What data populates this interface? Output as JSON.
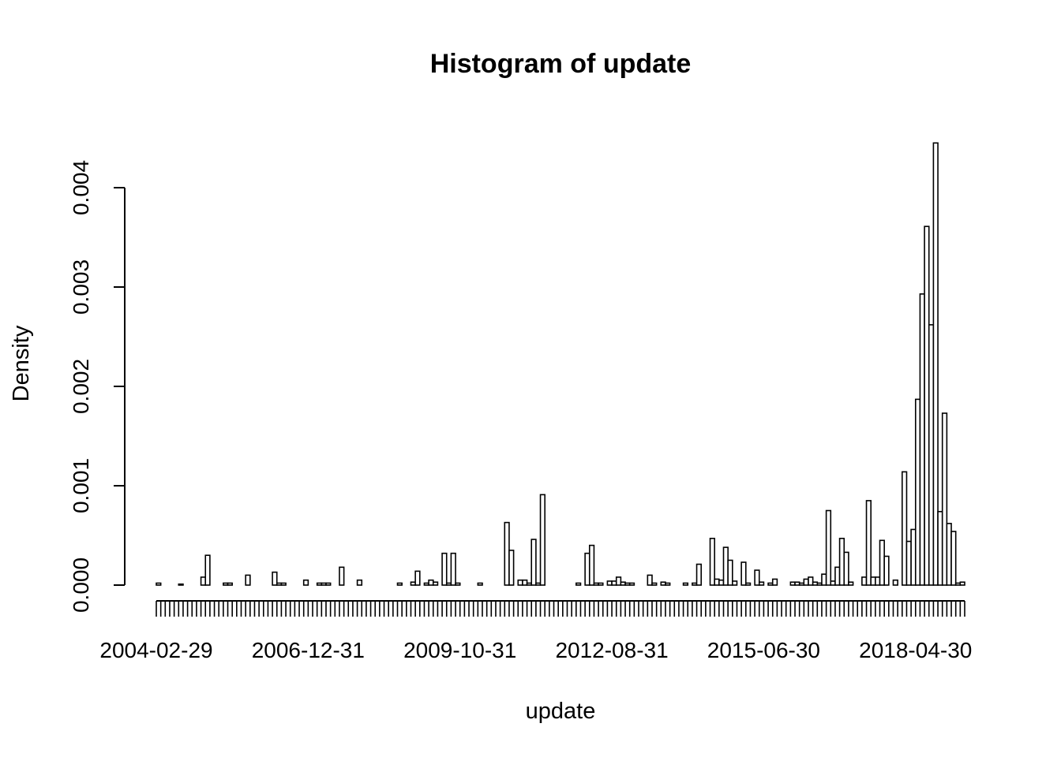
{
  "chart_data": {
    "type": "bar",
    "title": "Histogram of update",
    "xlabel": "update",
    "ylabel": "Density",
    "x_start": "2004-02-29",
    "bin_months": 1,
    "xtick_labels": [
      "2004-02-29",
      "2006-12-31",
      "2009-10-31",
      "2012-08-31",
      "2015-06-30",
      "2018-04-30"
    ],
    "yticks": [
      0,
      0.001,
      0.002,
      0.003,
      0.004
    ],
    "ytick_labels": [
      "0.000",
      "0.001",
      "0.002",
      "0.003",
      "0.004"
    ],
    "ylim": [
      0,
      0.0045
    ],
    "grid": false,
    "values": [
      2e-05,
      0,
      0,
      0,
      0,
      1e-05,
      0,
      0,
      0,
      0,
      8e-05,
      0.0003,
      0,
      0,
      0,
      2e-05,
      2e-05,
      0,
      0,
      0,
      0.0001,
      0,
      0,
      0,
      0,
      0,
      0.00013,
      2e-05,
      2e-05,
      0,
      0,
      0,
      0,
      5e-05,
      0,
      0,
      2e-05,
      2e-05,
      2e-05,
      0,
      0,
      0.00018,
      0,
      0,
      0,
      5e-05,
      0,
      0,
      0,
      0,
      0,
      0,
      0,
      0,
      2e-05,
      0,
      0,
      3e-05,
      0.00014,
      0,
      2e-05,
      5e-05,
      3e-05,
      0,
      0.00032,
      2e-05,
      0.00032,
      2e-05,
      0,
      0,
      0,
      0,
      2e-05,
      0,
      0,
      0,
      0,
      0,
      0.00063,
      0.00035,
      0,
      5e-05,
      5e-05,
      2e-05,
      0.00046,
      2e-05,
      0.00091,
      0,
      0,
      0,
      0,
      0,
      0,
      0,
      2e-05,
      0,
      0.00032,
      0.0004,
      2e-05,
      2e-05,
      0,
      4e-05,
      4e-05,
      8e-05,
      3e-05,
      2e-05,
      2e-05,
      0,
      0,
      0,
      0.0001,
      2e-05,
      0,
      3e-05,
      2e-05,
      0,
      0,
      0,
      2e-05,
      0,
      2e-05,
      0.00021,
      0,
      0,
      0.00047,
      6e-05,
      5e-05,
      0.00038,
      0.00025,
      4e-05,
      0,
      0.00023,
      2e-05,
      0,
      0.00015,
      3e-05,
      0,
      2e-05,
      6e-05,
      0,
      0,
      0,
      3e-05,
      3e-05,
      2e-05,
      6e-05,
      8e-05,
      3e-05,
      2e-05,
      0.00011,
      0.00075,
      4e-05,
      0.00018,
      0.00047,
      0.00033,
      3e-05,
      0,
      0,
      8e-05,
      0.00085,
      8e-05,
      8e-05,
      0.00045,
      0.00029,
      0,
      5e-05,
      0,
      0.00114,
      0.00044,
      0.00056,
      0.00187,
      0.00293,
      0.00361,
      0.00262,
      0.00445,
      0.00074,
      0.00173,
      0.00062,
      0.00054,
      2e-05,
      3e-05
    ]
  }
}
